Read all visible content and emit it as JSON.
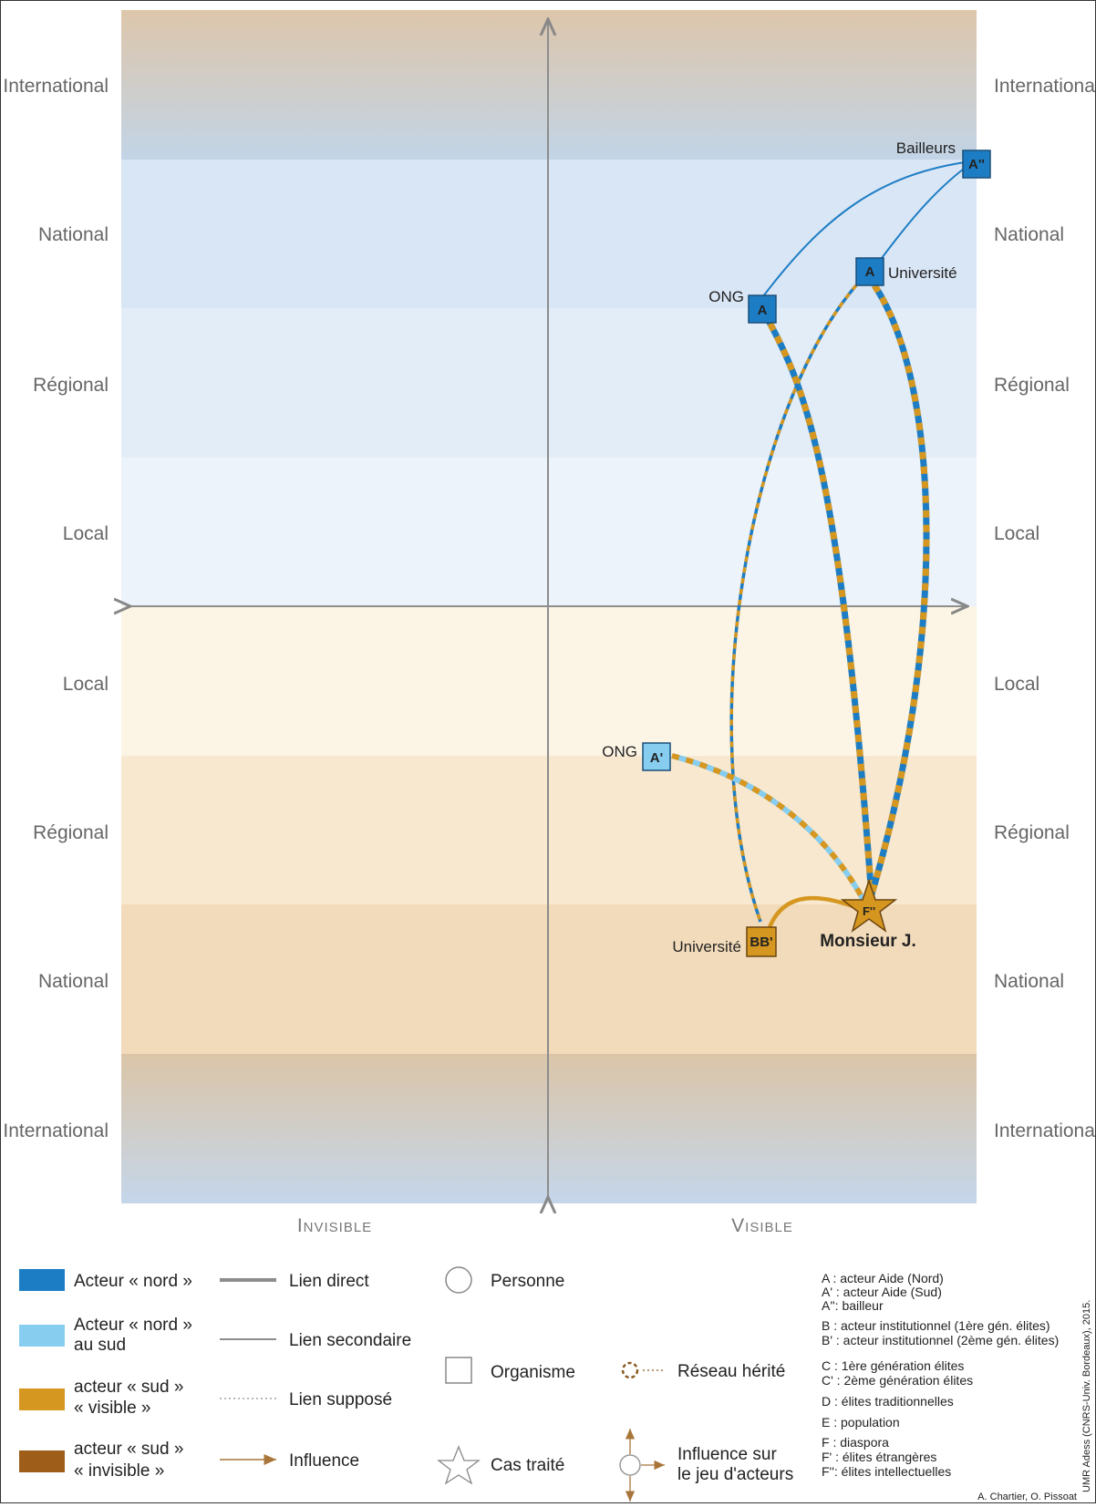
{
  "axes": {
    "left_levels_top": [
      "International",
      "National",
      "Régional",
      "Local"
    ],
    "left_levels_bottom": [
      "Local",
      "Régional",
      "National",
      "International"
    ],
    "right_levels_top": [
      "International",
      "National",
      "Régional",
      "Local"
    ],
    "right_levels_bottom": [
      "Local",
      "Régional",
      "National",
      "International"
    ],
    "x_left": "Invisible",
    "x_right": "Visible"
  },
  "actors": {
    "bailleurs_label": "Bailleurs",
    "bailleurs_box": "A''",
    "ong_north_label": "ONG",
    "ong_north_box": "A",
    "univ_north_label": "Université",
    "univ_north_box": "A",
    "ong_south_label": "ONG",
    "ong_south_box": "A'",
    "univ_south_label": "Université",
    "univ_south_box": "BB'",
    "case_box": "F''",
    "case_label": "Monsieur J."
  },
  "legend": {
    "colors": [
      {
        "lines": [
          "Acteur « nord »"
        ],
        "color": "#1d7dc4"
      },
      {
        "lines": [
          "Acteur « nord »",
          "au sud"
        ],
        "color": "#86cdf0"
      },
      {
        "lines": [
          "acteur « sud »",
          "« visible »"
        ],
        "color": "#d69720"
      },
      {
        "lines": [
          "acteur « sud »",
          "« invisible »"
        ],
        "color": "#9e5e1a"
      }
    ],
    "links": [
      "Lien direct",
      "Lien secondaire",
      "Lien supposé",
      "Influence"
    ],
    "shapes": [
      "Personne",
      "Organisme",
      "Cas traité"
    ],
    "network": "Réseau hérité",
    "influence_game": [
      "Influence sur",
      "le jeu d'acteurs"
    ],
    "key": [
      "A : acteur Aide (Nord)",
      "A' : acteur Aide (Sud)",
      "A'': bailleur",
      "B : acteur institutionnel (1ère gén. élites)",
      "B' : acteur institutionnel (2ème gén. élites)",
      "C : 1ère génération élites",
      "C' : 2ème génération élites",
      "D : élites traditionnelles",
      "E : population",
      "F : diaspora",
      "F' : élites étrangères",
      "F'': élites intellectuelles"
    ]
  },
  "credits": {
    "vertical": "UMR Adess (CNRS-Univ. Bordeaux), 2015.",
    "authors": "A. Chartier, O. Pissoat"
  },
  "colors": {
    "north": "#1d7dc4",
    "north_south": "#86cdf0",
    "south_visible": "#d69720",
    "south_invisible": "#9e5e1a"
  }
}
